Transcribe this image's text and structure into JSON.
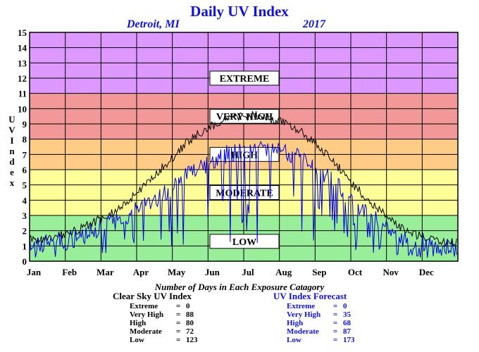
{
  "header": {
    "title": "Daily UV Index",
    "location": "Detroit, MI",
    "year": "2017"
  },
  "axis": {
    "ylabel_chars": [
      "U",
      "V",
      "",
      "I",
      "n",
      "d",
      "e",
      "x"
    ]
  },
  "chart_data": {
    "type": "line",
    "title": "Daily UV Index",
    "ylabel": "UV Index",
    "ylim": [
      0,
      15
    ],
    "y_ticks": [
      0,
      1,
      2,
      3,
      4,
      5,
      6,
      7,
      8,
      9,
      10,
      11,
      12,
      13,
      14,
      15
    ],
    "x_ticks": [
      "Jan",
      "Feb",
      "Mar",
      "Apr",
      "May",
      "Jun",
      "Jul",
      "Aug",
      "Sep",
      "Oct",
      "Nov",
      "Dec"
    ],
    "grid": true,
    "bands": [
      {
        "label": "LOW",
        "range": [
          0,
          3
        ],
        "color": "#99ee99"
      },
      {
        "label": "MODERATE",
        "range": [
          3,
          6
        ],
        "color": "#ffff99"
      },
      {
        "label": "HIGH",
        "range": [
          6,
          8
        ],
        "color": "#ffcc88"
      },
      {
        "label": "VERY HIGH",
        "range": [
          8,
          11
        ],
        "color": "#f29898"
      },
      {
        "label": "EXTREME",
        "range": [
          11,
          15
        ],
        "color": "#dd99ff"
      }
    ],
    "band_label_values": [
      12,
      9.5,
      7,
      4.5,
      1.3
    ],
    "series": [
      {
        "key": "clear_sky",
        "color": "#000000",
        "monthly_clear_sky": [
          1.4,
          2.2,
          3.4,
          5.6,
          8.0,
          9.4,
          9.6,
          8.7,
          6.6,
          3.9,
          2.0,
          1.2
        ]
      },
      {
        "key": "forecast",
        "color": "#0000dd",
        "monthly_typical": [
          1.2,
          1.7,
          2.7,
          4.0,
          5.8,
          7.0,
          7.3,
          7.0,
          5.2,
          3.0,
          1.5,
          0.9
        ]
      }
    ]
  },
  "caption": "Number of Days in Each Exposure Catagory",
  "clear_sky": {
    "heading": "Clear Sky UV Index",
    "rows": [
      {
        "label": "Extreme",
        "value": "0"
      },
      {
        "label": "Very High",
        "value": "88"
      },
      {
        "label": "High",
        "value": "80"
      },
      {
        "label": "Moderate",
        "value": "72"
      },
      {
        "label": "Low",
        "value": "123"
      }
    ]
  },
  "forecast": {
    "heading": "UV Index Forecast",
    "rows": [
      {
        "label": "Extreme",
        "value": "0"
      },
      {
        "label": "Very High",
        "value": "35"
      },
      {
        "label": "High",
        "value": "68"
      },
      {
        "label": "Moderate",
        "value": "87"
      },
      {
        "label": "Low",
        "value": "173"
      }
    ]
  }
}
